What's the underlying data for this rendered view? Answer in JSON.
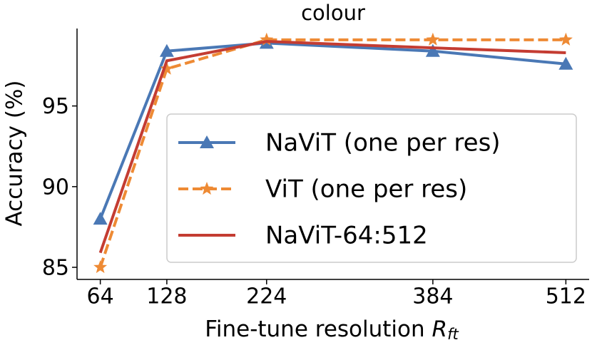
{
  "chart_data": {
    "type": "line",
    "title": "colour",
    "x_label": {
      "text": "Fine-tune resolution ",
      "symbol": "R",
      "subscript": "ft"
    },
    "y_label": "Accuracy (%)",
    "x": [
      64,
      128,
      224,
      384,
      512
    ],
    "xlim": [
      41.6,
      534.4
    ],
    "xticks": [
      64,
      128,
      224,
      384,
      512
    ],
    "ylim": [
      84.25,
      99.8
    ],
    "yticks": [
      85,
      90,
      95
    ],
    "grid": false,
    "legend": "center right",
    "series": [
      {
        "name": "NaViT (one per res)",
        "color": "#4a78b5",
        "marker": "triangle",
        "dash": "solid",
        "values": [
          88.0,
          98.4,
          98.9,
          98.4,
          97.6
        ]
      },
      {
        "name": "ViT (one per res)",
        "color": "#ee8a34",
        "marker": "star",
        "dash": "dashed",
        "values": [
          85.0,
          97.3,
          99.1,
          99.1,
          99.1
        ]
      },
      {
        "name": "NaViT-64:512",
        "color": "#c43c32",
        "marker": "none",
        "dash": "solid",
        "values": [
          85.9,
          97.8,
          99.0,
          98.6,
          98.3
        ]
      }
    ]
  }
}
